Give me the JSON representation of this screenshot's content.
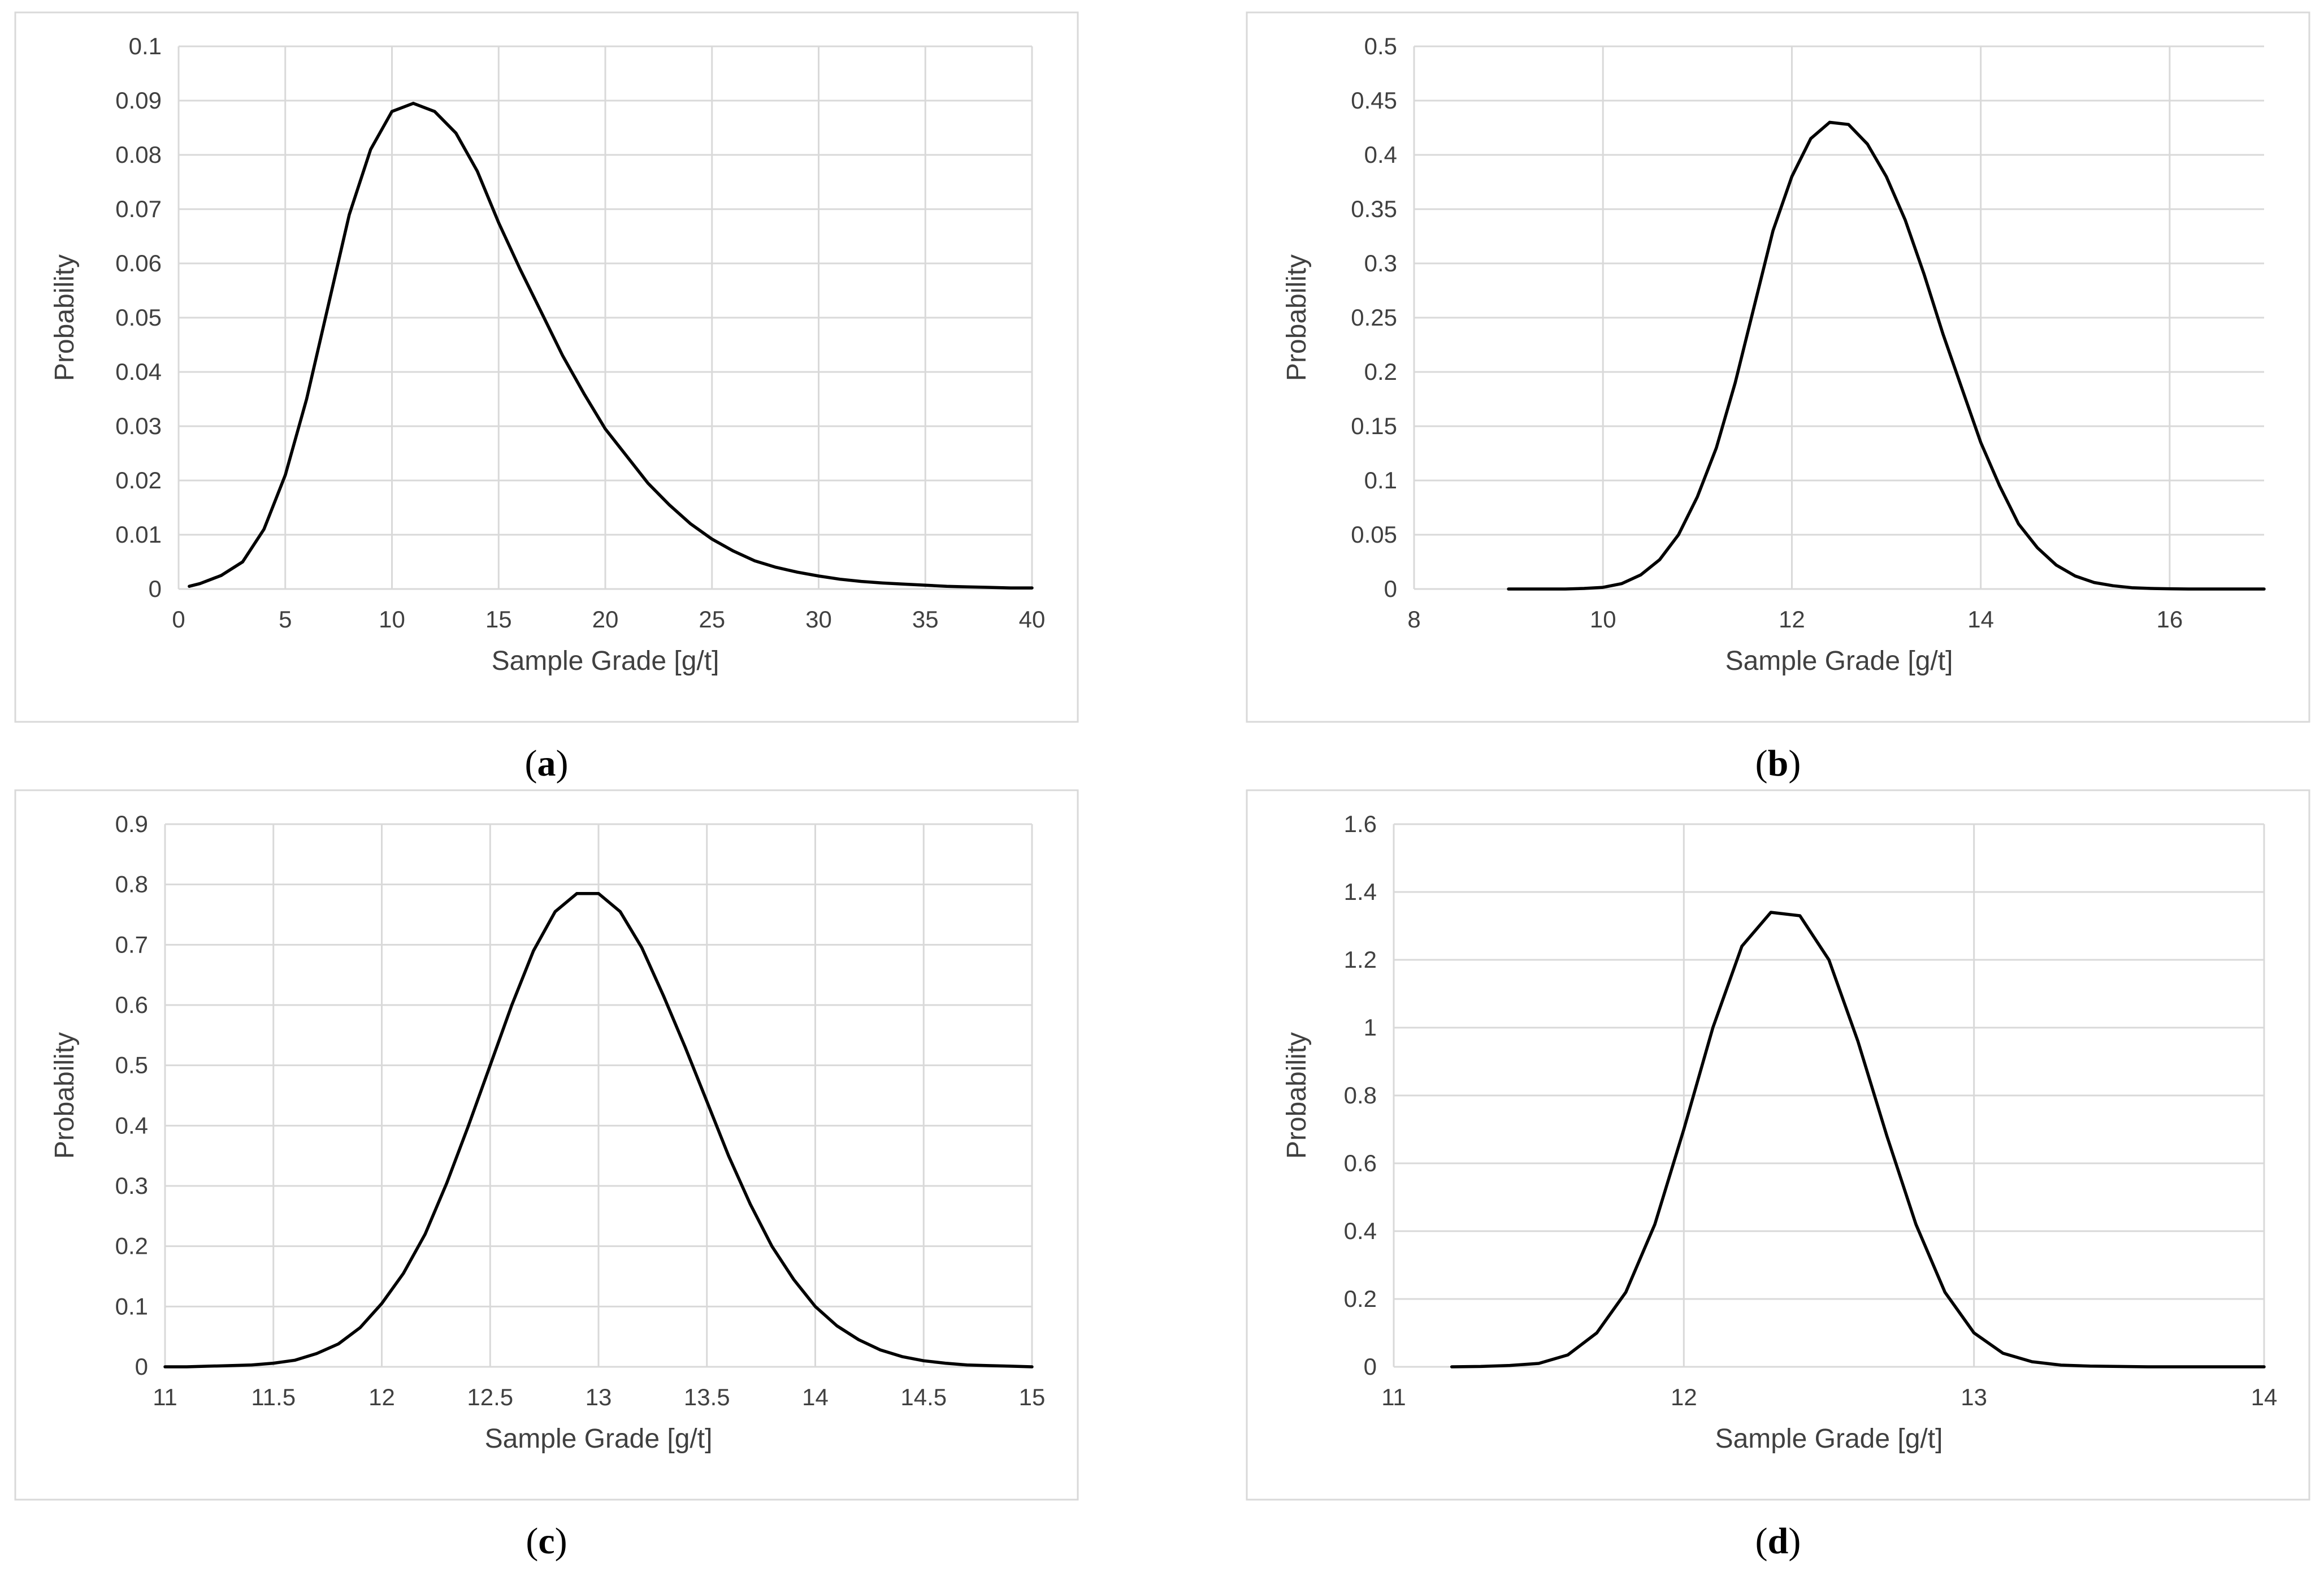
{
  "chart_data": [
    {
      "type": "line",
      "panel": "a",
      "caption": {
        "open": "(",
        "letter": "a",
        "close": ")"
      },
      "xlabel": "Sample Grade [g/t]",
      "ylabel": "Probability",
      "xlim": [
        0,
        40
      ],
      "ylim": [
        0,
        0.1
      ],
      "x_ticks": [
        0,
        5,
        10,
        15,
        20,
        25,
        30,
        35,
        40
      ],
      "y_ticks": [
        0,
        0.01,
        0.02,
        0.03,
        0.04,
        0.05,
        0.06,
        0.07,
        0.08,
        0.09,
        0.1
      ],
      "x_tick_labels": [
        "0",
        "5",
        "10",
        "15",
        "20",
        "25",
        "30",
        "35",
        "40"
      ],
      "y_tick_labels": [
        "0",
        "0.01",
        "0.02",
        "0.03",
        "0.04",
        "0.05",
        "0.06",
        "0.07",
        "0.08",
        "0.09",
        "0.1"
      ],
      "series": [
        {
          "name": "Probability",
          "x": [
            0.5,
            1,
            2,
            3,
            4,
            5,
            6,
            7,
            8,
            9,
            10,
            11,
            12,
            13,
            14,
            15,
            16,
            17,
            18,
            19,
            20,
            21,
            22,
            23,
            24,
            25,
            26,
            27,
            28,
            29,
            30,
            31,
            32,
            33,
            34,
            35,
            36,
            37,
            38,
            39,
            40
          ],
          "y": [
            0.0005,
            0.001,
            0.0025,
            0.005,
            0.011,
            0.021,
            0.035,
            0.052,
            0.069,
            0.081,
            0.088,
            0.0895,
            0.088,
            0.084,
            0.077,
            0.0675,
            0.059,
            0.051,
            0.043,
            0.036,
            0.0295,
            0.0245,
            0.0195,
            0.0155,
            0.012,
            0.0092,
            0.007,
            0.0052,
            0.004,
            0.0031,
            0.0024,
            0.0018,
            0.0014,
            0.0011,
            0.0009,
            0.0007,
            0.0005,
            0.0004,
            0.0003,
            0.0002,
            0.0002
          ]
        }
      ]
    },
    {
      "type": "line",
      "panel": "b",
      "caption": {
        "open": "(",
        "letter": "b",
        "close": ")"
      },
      "xlabel": "Sample Grade [g/t]",
      "ylabel": "Probability",
      "xlim": [
        8,
        17
      ],
      "ylim": [
        0,
        0.5
      ],
      "x_ticks": [
        8,
        10,
        12,
        14,
        16
      ],
      "y_ticks": [
        0,
        0.05,
        0.1,
        0.15,
        0.2,
        0.25,
        0.3,
        0.35,
        0.4,
        0.45,
        0.5
      ],
      "x_tick_labels": [
        "8",
        "10",
        "12",
        "14",
        "16"
      ],
      "y_tick_labels": [
        "0",
        "0.05",
        "0.1",
        "0.15",
        "0.2",
        "0.25",
        "0.3",
        "0.35",
        "0.4",
        "0.45",
        "0.5"
      ],
      "series": [
        {
          "name": "Probability",
          "x": [
            9.0,
            9.2,
            9.4,
            9.6,
            9.8,
            10.0,
            10.2,
            10.4,
            10.6,
            10.8,
            11.0,
            11.2,
            11.4,
            11.6,
            11.8,
            12.0,
            12.2,
            12.4,
            12.6,
            12.8,
            13.0,
            13.2,
            13.4,
            13.6,
            13.8,
            14.0,
            14.2,
            14.4,
            14.6,
            14.8,
            15.0,
            15.2,
            15.4,
            15.6,
            15.8,
            16.0,
            16.2,
            16.4,
            16.6,
            16.8,
            17.0
          ],
          "y": [
            0.0,
            0.0,
            0.0,
            0.0,
            0.0005,
            0.0015,
            0.005,
            0.013,
            0.027,
            0.05,
            0.085,
            0.13,
            0.19,
            0.26,
            0.33,
            0.38,
            0.415,
            0.43,
            0.428,
            0.41,
            0.38,
            0.34,
            0.29,
            0.235,
            0.185,
            0.135,
            0.095,
            0.06,
            0.038,
            0.022,
            0.012,
            0.006,
            0.003,
            0.0012,
            0.0005,
            0.0002,
            0.0,
            0.0,
            0.0,
            0.0,
            0.0
          ]
        }
      ]
    },
    {
      "type": "line",
      "panel": "c",
      "caption": {
        "open": "(",
        "letter": "c",
        "close": ")"
      },
      "xlabel": "Sample Grade [g/t]",
      "ylabel": "Probability",
      "xlim": [
        11,
        15
      ],
      "ylim": [
        0,
        0.9
      ],
      "x_ticks": [
        11,
        11.5,
        12,
        12.5,
        13,
        13.5,
        14,
        14.5,
        15
      ],
      "y_ticks": [
        0,
        0.1,
        0.2,
        0.3,
        0.4,
        0.5,
        0.6,
        0.7,
        0.8,
        0.9
      ],
      "x_tick_labels": [
        "11",
        "11.5",
        "12",
        "12.5",
        "13",
        "13.5",
        "14",
        "14.5",
        "15"
      ],
      "y_tick_labels": [
        "0",
        "0.1",
        "0.2",
        "0.3",
        "0.4",
        "0.5",
        "0.6",
        "0.7",
        "0.8",
        "0.9"
      ],
      "series": [
        {
          "name": "Probability",
          "x": [
            11.0,
            11.1,
            11.2,
            11.3,
            11.4,
            11.5,
            11.6,
            11.7,
            11.8,
            11.9,
            12.0,
            12.1,
            12.2,
            12.3,
            12.4,
            12.5,
            12.6,
            12.7,
            12.8,
            12.9,
            13.0,
            13.1,
            13.2,
            13.3,
            13.4,
            13.5,
            13.6,
            13.7,
            13.8,
            13.9,
            14.0,
            14.1,
            14.2,
            14.3,
            14.4,
            14.5,
            14.6,
            14.7,
            14.8,
            14.9,
            15.0
          ],
          "y": [
            0.0,
            0.0,
            0.001,
            0.002,
            0.003,
            0.006,
            0.011,
            0.022,
            0.038,
            0.065,
            0.105,
            0.155,
            0.22,
            0.305,
            0.4,
            0.5,
            0.6,
            0.69,
            0.755,
            0.785,
            0.785,
            0.755,
            0.695,
            0.615,
            0.53,
            0.44,
            0.35,
            0.27,
            0.2,
            0.145,
            0.1,
            0.068,
            0.045,
            0.028,
            0.017,
            0.01,
            0.006,
            0.003,
            0.002,
            0.001,
            0.0
          ]
        }
      ]
    },
    {
      "type": "line",
      "panel": "d",
      "caption": {
        "open": "(",
        "letter": "d",
        "close": ")"
      },
      "xlabel": "Sample Grade [g/t]",
      "ylabel": "Probability",
      "xlim": [
        11,
        14
      ],
      "ylim": [
        0,
        1.6
      ],
      "x_ticks": [
        11,
        12,
        13,
        14
      ],
      "y_ticks": [
        0,
        0.2,
        0.4,
        0.6,
        0.8,
        1.0,
        1.2,
        1.4,
        1.6
      ],
      "x_tick_labels": [
        "11",
        "12",
        "13",
        "14"
      ],
      "y_tick_labels": [
        "0",
        "0.2",
        "0.4",
        "0.6",
        "0.8",
        "1",
        "1.2",
        "1.4",
        "1.6"
      ],
      "series": [
        {
          "name": "Probability",
          "x": [
            11.2,
            11.3,
            11.4,
            11.5,
            11.6,
            11.7,
            11.8,
            11.9,
            12.0,
            12.1,
            12.2,
            12.3,
            12.4,
            12.5,
            12.6,
            12.7,
            12.8,
            12.9,
            13.0,
            13.1,
            13.2,
            13.3,
            13.4,
            13.5,
            13.6,
            13.7,
            13.8,
            13.9,
            14.0
          ],
          "y": [
            0.0,
            0.001,
            0.004,
            0.01,
            0.035,
            0.1,
            0.22,
            0.42,
            0.7,
            1.0,
            1.24,
            1.34,
            1.33,
            1.2,
            0.96,
            0.68,
            0.42,
            0.22,
            0.1,
            0.04,
            0.015,
            0.005,
            0.002,
            0.001,
            0.0,
            0.0,
            0.0,
            0.0,
            0.0
          ]
        }
      ]
    }
  ]
}
